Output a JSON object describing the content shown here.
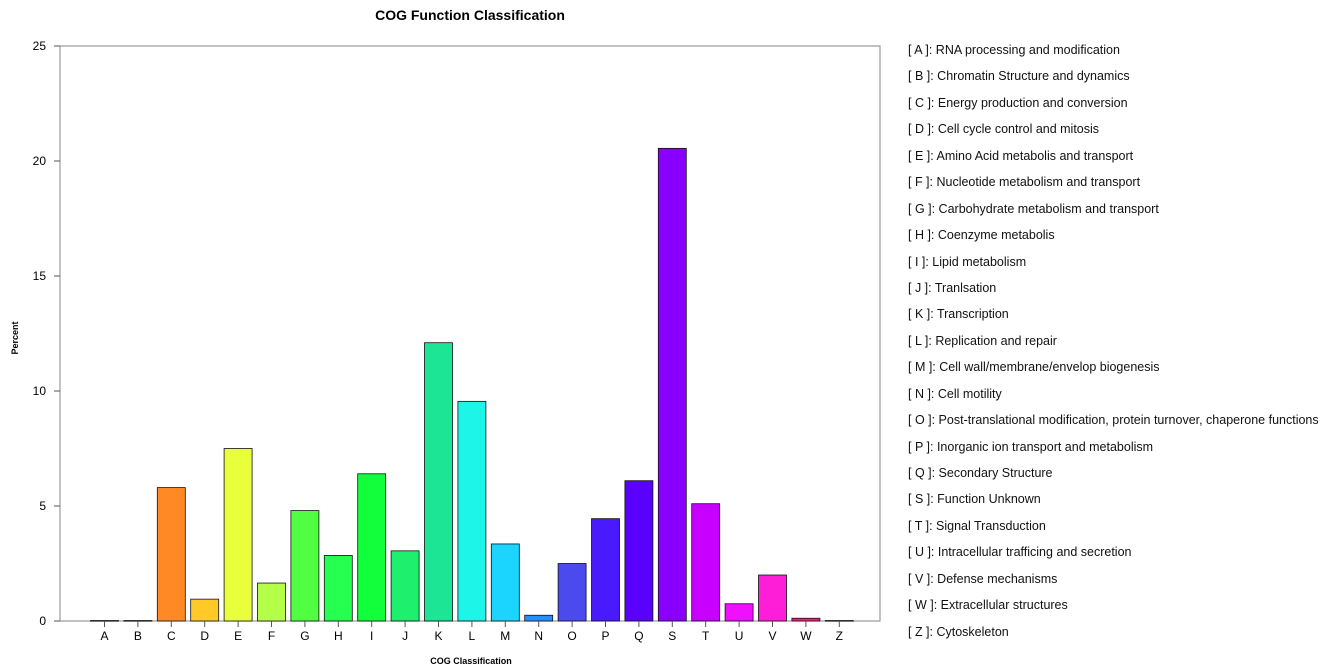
{
  "chart_data": {
    "type": "bar",
    "title": "COG Function Classification",
    "xlabel": "COG Classification",
    "ylabel": "Percent",
    "ylim": [
      0,
      25
    ],
    "yticks": [
      0,
      5,
      10,
      15,
      20,
      25
    ],
    "grid": false,
    "legend_position": "right",
    "categories": [
      "A",
      "B",
      "C",
      "D",
      "E",
      "F",
      "G",
      "H",
      "I",
      "J",
      "K",
      "L",
      "M",
      "N",
      "O",
      "P",
      "Q",
      "S",
      "T",
      "U",
      "V",
      "W",
      "Z"
    ],
    "values": [
      0.02,
      0.02,
      5.8,
      0.95,
      7.5,
      1.65,
      4.8,
      2.85,
      6.4,
      3.05,
      12.1,
      9.55,
      3.35,
      0.25,
      2.5,
      4.45,
      6.1,
      20.55,
      5.1,
      0.75,
      2.0,
      0.12,
      0.02
    ],
    "colors": [
      "#ff2a2a",
      "#ff3a1c",
      "#ff8a25",
      "#ffc928",
      "#eaff3c",
      "#b4ff48",
      "#50ff42",
      "#25ff50",
      "#12ff3c",
      "#1cf06c",
      "#1ce696",
      "#1cf5e8",
      "#1cd5ff",
      "#2a8dff",
      "#4a4aee",
      "#4a1aff",
      "#5a00ff",
      "#8a00ff",
      "#c800ff",
      "#f010ff",
      "#ff1ed8",
      "#ff1a80",
      "#ff3050"
    ],
    "legend": [
      "[ A ]: RNA processing and modification",
      "[ B ]: Chromatin Structure and dynamics",
      "[ C ]: Energy production and conversion",
      "[ D ]: Cell cycle control and mitosis",
      "[ E ]: Amino Acid metabolis and transport",
      "[ F ]: Nucleotide metabolism and transport",
      "[ G ]: Carbohydrate metabolism and transport",
      "[ H ]: Coenzyme metabolis",
      "[ I ]: Lipid metabolism",
      "[ J ]: Tranlsation",
      "[ K ]: Transcription",
      "[ L ]: Replication and repair",
      "[ M ]: Cell wall/membrane/envelop biogenesis",
      "[ N ]: Cell motility",
      "[ O ]: Post-translational modification, protein turnover, chaperone functions",
      "[ P ]: Inorganic ion transport and metabolism",
      "[ Q ]: Secondary Structure",
      "[ S ]: Function Unknown",
      "[ T ]: Signal Transduction",
      "[ U ]: Intracellular trafficing and secretion",
      "[ V ]: Defense mechanisms",
      "[ W ]: Extracellular structures",
      "[ Z ]: Cytoskeleton"
    ]
  }
}
